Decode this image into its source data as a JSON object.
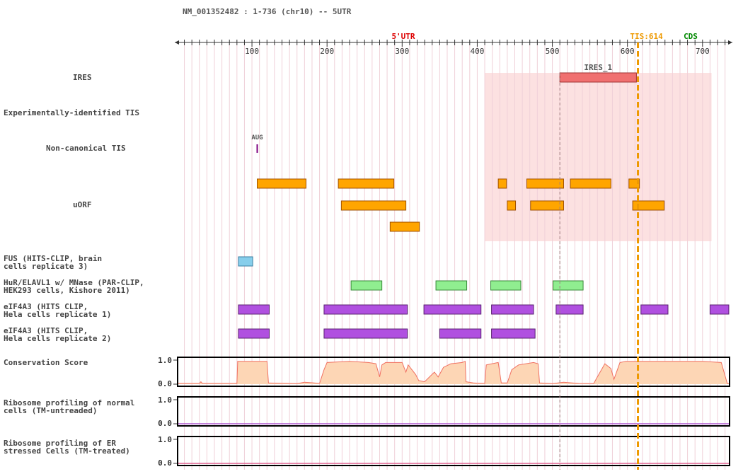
{
  "header": {
    "title": "NM_001352482 : 1-736 (chr10) -- 5UTR"
  },
  "axis": {
    "start": 1,
    "end": 736,
    "ticks": [
      100,
      200,
      300,
      400,
      500,
      600,
      700
    ],
    "utr_label": "5'UTR",
    "tis_label": "TIS:614",
    "cds_label": "CDS",
    "tis_position": 614,
    "marker_position": 510
  },
  "colors": {
    "ires_region": "#fcdcdc",
    "ires": "#f07070",
    "uorf": "#ffa500",
    "fus": "#87ceeb",
    "hur": "#90ee90",
    "eif4a3": "#b050e0",
    "tis_line": "#ee9900",
    "conservation_fill": "#fdd6b5",
    "conservation_line": "#f07060",
    "ribo_normal": "#b05ad0",
    "ribo_stressed": "#e06090",
    "grid": "#f0d0d8"
  },
  "ires_region": {
    "start": 410,
    "end": 712
  },
  "tracks": [
    {
      "id": "ires",
      "label": "IRES",
      "type": "ires",
      "features": [
        {
          "start": 510,
          "end": 612,
          "label": "IRES_1"
        }
      ]
    },
    {
      "id": "exp-tis",
      "label": "Experimentally-identified TIS",
      "type": "empty",
      "features": []
    },
    {
      "id": "noncanon-tis",
      "label": "Non-canonical TIS",
      "type": "tick",
      "features": [
        {
          "position": 107,
          "label": "AUG"
        }
      ]
    },
    {
      "id": "uorf",
      "label": "uORF",
      "type": "uorf",
      "features": [
        {
          "start": 107,
          "end": 172,
          "row": 0
        },
        {
          "start": 215,
          "end": 289,
          "row": 0
        },
        {
          "start": 428,
          "end": 439,
          "row": 0
        },
        {
          "start": 466,
          "end": 515,
          "row": 0
        },
        {
          "start": 524,
          "end": 578,
          "row": 0
        },
        {
          "start": 602,
          "end": 616,
          "row": 0
        },
        {
          "start": 219,
          "end": 305,
          "row": 1
        },
        {
          "start": 440,
          "end": 451,
          "row": 1
        },
        {
          "start": 471,
          "end": 515,
          "row": 1
        },
        {
          "start": 607,
          "end": 649,
          "row": 1
        },
        {
          "start": 284,
          "end": 323,
          "row": 2
        }
      ]
    },
    {
      "id": "fus",
      "label": "FUS (HITS-CLIP, brain\ncells replicate 3)",
      "type": "fus",
      "features": [
        {
          "start": 82,
          "end": 101
        }
      ]
    },
    {
      "id": "hur",
      "label": "HuR/ELAVL1 w/ MNase (PAR-CLIP,\nHEK293 cells, Kishore 2011)",
      "type": "hur",
      "features": [
        {
          "start": 232,
          "end": 273
        },
        {
          "start": 345,
          "end": 386
        },
        {
          "start": 418,
          "end": 458
        },
        {
          "start": 501,
          "end": 541
        }
      ]
    },
    {
      "id": "eif4a3-1",
      "label": "eIF4A3 (HITS CLIP,\nHela cells replicate 1)",
      "type": "eif4a3",
      "features": [
        {
          "start": 82,
          "end": 123
        },
        {
          "start": 196,
          "end": 307
        },
        {
          "start": 329,
          "end": 405
        },
        {
          "start": 419,
          "end": 475
        },
        {
          "start": 505,
          "end": 541
        },
        {
          "start": 618,
          "end": 654
        },
        {
          "start": 710,
          "end": 735
        }
      ]
    },
    {
      "id": "eif4a3-2",
      "label": "eIF4A3 (HITS CLIP,\nHela cells replicate 2)",
      "type": "eif4a3",
      "features": [
        {
          "start": 82,
          "end": 123
        },
        {
          "start": 196,
          "end": 307
        },
        {
          "start": 350,
          "end": 405
        },
        {
          "start": 419,
          "end": 477
        }
      ]
    }
  ],
  "plots": [
    {
      "id": "conservation",
      "label": "Conservation Score",
      "type": "area",
      "ymax_label": "1.0",
      "ymin_label": "0.0",
      "segments": [
        [
          1,
          0.03
        ],
        [
          30,
          0.03
        ],
        [
          32,
          0.1
        ],
        [
          34,
          0.03
        ],
        [
          80,
          0.03
        ],
        [
          81,
          0.95
        ],
        [
          120,
          0.95
        ],
        [
          122,
          0.05
        ],
        [
          160,
          0.02
        ],
        [
          170,
          0.08
        ],
        [
          180,
          0.06
        ],
        [
          190,
          0.03
        ],
        [
          196,
          0.6
        ],
        [
          200,
          0.9
        ],
        [
          230,
          0.95
        ],
        [
          255,
          0.9
        ],
        [
          265,
          0.85
        ],
        [
          270,
          0.3
        ],
        [
          273,
          0.8
        ],
        [
          278,
          0.9
        ],
        [
          300,
          0.9
        ],
        [
          305,
          0.5
        ],
        [
          308,
          0.8
        ],
        [
          318,
          0.4
        ],
        [
          322,
          0.15
        ],
        [
          330,
          0.1
        ],
        [
          338,
          0.35
        ],
        [
          343,
          0.5
        ],
        [
          348,
          0.3
        ],
        [
          355,
          0.7
        ],
        [
          365,
          0.85
        ],
        [
          380,
          0.9
        ],
        [
          384,
          0.95
        ],
        [
          385,
          0.1
        ],
        [
          395,
          0.05
        ],
        [
          400,
          0.04
        ],
        [
          410,
          0.03
        ],
        [
          412,
          0.8
        ],
        [
          428,
          0.9
        ],
        [
          432,
          0.05
        ],
        [
          440,
          0.05
        ],
        [
          446,
          0.6
        ],
        [
          455,
          0.8
        ],
        [
          475,
          0.9
        ],
        [
          481,
          0.85
        ],
        [
          483,
          0.05
        ],
        [
          500,
          0.02
        ],
        [
          515,
          0.08
        ],
        [
          535,
          0.03
        ],
        [
          555,
          0.02
        ],
        [
          560,
          0.3
        ],
        [
          570,
          0.85
        ],
        [
          578,
          0.65
        ],
        [
          582,
          0.2
        ],
        [
          590,
          0.9
        ],
        [
          598,
          0.95
        ],
        [
          630,
          0.95
        ],
        [
          700,
          0.95
        ],
        [
          725,
          0.9
        ],
        [
          733,
          0.02
        ],
        [
          736,
          0.02
        ]
      ]
    },
    {
      "id": "ribo-normal",
      "label": "Ribosome profiling of normal\ncells (TM-untreaded)",
      "type": "flat",
      "ymax_label": "1.0",
      "ymin_label": "0.0",
      "color_key": "ribo_normal"
    },
    {
      "id": "ribo-stressed",
      "label": "Ribosome profiling of ER\nstressed Cells (TM-treated)",
      "type": "flat",
      "ymax_label": "1.0",
      "ymin_label": "0.0",
      "color_key": "ribo_stressed"
    }
  ]
}
